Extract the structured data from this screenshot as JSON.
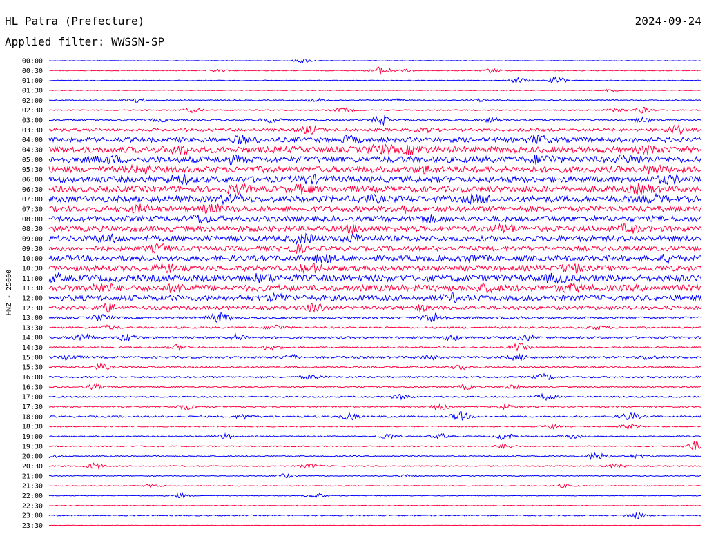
{
  "header": {
    "station": "HL Patra (Prefecture)",
    "date": "2024-09-24",
    "filter_text": "Applied filter: WWSSN-SP",
    "channel_label": "HNZ - 25000"
  },
  "colors": {
    "blue": "#0000ff",
    "red": "#ff0040"
  },
  "chart_data": {
    "type": "line",
    "title": "HL Patra (Prefecture)",
    "ylabel": "HNZ - 25000",
    "rows": [
      {
        "label": "00:00",
        "color": "blue",
        "noise": 0.4,
        "events": [
          [
            0.39,
            3
          ]
        ]
      },
      {
        "label": "00:30",
        "color": "red",
        "noise": 0.6,
        "events": [
          [
            0.26,
            1.5
          ],
          [
            0.51,
            6
          ],
          [
            0.55,
            1.5
          ],
          [
            0.68,
            3
          ]
        ]
      },
      {
        "label": "01:00",
        "color": "blue",
        "noise": 0.5,
        "events": [
          [
            0.72,
            4
          ],
          [
            0.78,
            5
          ]
        ]
      },
      {
        "label": "01:30",
        "color": "red",
        "noise": 0.5,
        "events": [
          [
            0.86,
            1.5
          ]
        ]
      },
      {
        "label": "02:00",
        "color": "blue",
        "noise": 0.8,
        "events": [
          [
            0.13,
            4
          ],
          [
            0.41,
            2
          ],
          [
            0.53,
            2
          ],
          [
            0.66,
            1.5
          ]
        ]
      },
      {
        "label": "02:30",
        "color": "red",
        "noise": 0.8,
        "events": [
          [
            0.22,
            3
          ],
          [
            0.45,
            3
          ],
          [
            0.87,
            2
          ],
          [
            0.91,
            4
          ]
        ]
      },
      {
        "label": "03:00",
        "color": "blue",
        "noise": 1.2,
        "events": [
          [
            0.17,
            2
          ],
          [
            0.34,
            4
          ],
          [
            0.51,
            6
          ],
          [
            0.68,
            3
          ],
          [
            0.91,
            3
          ]
        ]
      },
      {
        "label": "03:30",
        "color": "red",
        "noise": 2,
        "events": [
          [
            0.4,
            5
          ],
          [
            0.58,
            2
          ],
          [
            0.96,
            6
          ]
        ]
      },
      {
        "label": "04:00",
        "color": "blue",
        "noise": 3.5,
        "events": [
          [
            0.3,
            9
          ],
          [
            0.46,
            4
          ],
          [
            0.75,
            6
          ]
        ]
      },
      {
        "label": "04:30",
        "color": "red",
        "noise": 4.5,
        "events": [
          [
            0.2,
            5
          ],
          [
            0.51,
            9
          ],
          [
            0.56,
            6
          ],
          [
            0.92,
            5
          ]
        ]
      },
      {
        "label": "05:00",
        "color": "blue",
        "noise": 4.5,
        "events": [
          [
            0.09,
            6
          ],
          [
            0.28,
            5
          ],
          [
            0.76,
            10
          ],
          [
            0.89,
            9
          ]
        ]
      },
      {
        "label": "05:30",
        "color": "red",
        "noise": 4.5,
        "events": [
          [
            0.14,
            5
          ],
          [
            0.58,
            4
          ],
          [
            0.93,
            6
          ]
        ]
      },
      {
        "label": "06:00",
        "color": "blue",
        "noise": 4.5,
        "events": [
          [
            0.2,
            6
          ],
          [
            0.4,
            5
          ],
          [
            0.95,
            6
          ]
        ]
      },
      {
        "label": "06:30",
        "color": "red",
        "noise": 4.5,
        "events": [
          [
            0.29,
            7
          ],
          [
            0.39,
            6
          ],
          [
            0.91,
            6
          ]
        ]
      },
      {
        "label": "07:00",
        "color": "blue",
        "noise": 4.5,
        "events": [
          [
            0.28,
            9
          ],
          [
            0.49,
            7
          ],
          [
            0.66,
            10
          ],
          [
            0.93,
            5
          ]
        ]
      },
      {
        "label": "07:30",
        "color": "red",
        "noise": 4,
        "events": [
          [
            0.14,
            5
          ],
          [
            0.25,
            6
          ],
          [
            0.54,
            5
          ]
        ]
      },
      {
        "label": "08:00",
        "color": "blue",
        "noise": 4,
        "events": [
          [
            0.23,
            5
          ],
          [
            0.58,
            4
          ]
        ]
      },
      {
        "label": "08:30",
        "color": "red",
        "noise": 4,
        "events": [
          [
            0.47,
            5
          ],
          [
            0.7,
            8
          ],
          [
            0.89,
            5
          ]
        ]
      },
      {
        "label": "09:00",
        "color": "blue",
        "noise": 4,
        "events": [
          [
            0.09,
            8
          ],
          [
            0.39,
            8
          ],
          [
            0.47,
            5
          ]
        ]
      },
      {
        "label": "09:30",
        "color": "red",
        "noise": 3.5,
        "events": [
          [
            0.17,
            5
          ],
          [
            0.38,
            4
          ]
        ]
      },
      {
        "label": "10:00",
        "color": "blue",
        "noise": 4,
        "events": [
          [
            0.42,
            7
          ],
          [
            0.65,
            4
          ],
          [
            0.95,
            4
          ]
        ]
      },
      {
        "label": "10:30",
        "color": "red",
        "noise": 4,
        "events": [
          [
            0.18,
            5
          ],
          [
            0.4,
            6
          ],
          [
            0.8,
            6
          ]
        ]
      },
      {
        "label": "11:00",
        "color": "blue",
        "noise": 5,
        "events": [
          [
            0.0,
            7
          ],
          [
            0.33,
            6
          ],
          [
            0.78,
            7
          ]
        ]
      },
      {
        "label": "11:30",
        "color": "red",
        "noise": 4.5,
        "events": [
          [
            0.08,
            8
          ],
          [
            0.2,
            6
          ],
          [
            0.67,
            5
          ],
          [
            0.8,
            6
          ]
        ]
      },
      {
        "label": "12:00",
        "color": "blue",
        "noise": 4,
        "events": [
          [
            0.35,
            4
          ],
          [
            0.62,
            4
          ]
        ]
      },
      {
        "label": "12:30",
        "color": "red",
        "noise": 2.5,
        "events": [
          [
            0.09,
            6
          ],
          [
            0.41,
            7
          ],
          [
            0.57,
            3
          ]
        ]
      },
      {
        "label": "13:00",
        "color": "blue",
        "noise": 1.5,
        "events": [
          [
            0.08,
            4
          ],
          [
            0.26,
            9
          ],
          [
            0.59,
            14
          ],
          [
            0.72,
            3
          ]
        ]
      },
      {
        "label": "13:30",
        "color": "red",
        "noise": 1.2,
        "events": [
          [
            0.09,
            3
          ],
          [
            0.35,
            4
          ],
          [
            0.84,
            3
          ]
        ]
      },
      {
        "label": "14:00",
        "color": "blue",
        "noise": 1.5,
        "events": [
          [
            0.05,
            5
          ],
          [
            0.12,
            5
          ],
          [
            0.29,
            4
          ],
          [
            0.62,
            4
          ],
          [
            0.73,
            4
          ]
        ]
      },
      {
        "label": "14:30",
        "color": "red",
        "noise": 1,
        "events": [
          [
            0.2,
            4
          ],
          [
            0.34,
            4
          ],
          [
            0.72,
            5
          ]
        ]
      },
      {
        "label": "15:00",
        "color": "blue",
        "noise": 1.5,
        "events": [
          [
            0.03,
            4
          ],
          [
            0.37,
            3
          ],
          [
            0.58,
            3
          ],
          [
            0.72,
            4
          ],
          [
            0.92,
            3
          ]
        ]
      },
      {
        "label": "15:30",
        "color": "red",
        "noise": 1.2,
        "events": [
          [
            0.08,
            4
          ],
          [
            0.63,
            3
          ]
        ]
      },
      {
        "label": "16:00",
        "color": "blue",
        "noise": 1.2,
        "events": [
          [
            0.4,
            3
          ],
          [
            0.76,
            4
          ]
        ]
      },
      {
        "label": "16:30",
        "color": "red",
        "noise": 1,
        "events": [
          [
            0.07,
            3
          ],
          [
            0.64,
            3
          ],
          [
            0.71,
            3
          ]
        ]
      },
      {
        "label": "17:00",
        "color": "blue",
        "noise": 1,
        "events": [
          [
            0.54,
            3
          ],
          [
            0.76,
            4
          ]
        ]
      },
      {
        "label": "17:30",
        "color": "red",
        "noise": 1,
        "events": [
          [
            0.21,
            4
          ],
          [
            0.6,
            5
          ],
          [
            0.7,
            3
          ]
        ]
      },
      {
        "label": "18:00",
        "color": "blue",
        "noise": 1.2,
        "events": [
          [
            0.3,
            3
          ],
          [
            0.46,
            4
          ],
          [
            0.63,
            6
          ],
          [
            0.89,
            5
          ]
        ]
      },
      {
        "label": "18:30",
        "color": "red",
        "noise": 0.8,
        "events": [
          [
            0.77,
            3
          ],
          [
            0.89,
            4
          ]
        ]
      },
      {
        "label": "19:00",
        "color": "blue",
        "noise": 0.8,
        "events": [
          [
            0.27,
            3
          ],
          [
            0.52,
            4
          ],
          [
            0.6,
            3
          ],
          [
            0.7,
            5
          ],
          [
            0.8,
            3
          ]
        ]
      },
      {
        "label": "19:30",
        "color": "red",
        "noise": 0.8,
        "events": [
          [
            0.7,
            3
          ],
          [
            0.99,
            6
          ]
        ]
      },
      {
        "label": "20:00",
        "color": "blue",
        "noise": 0.8,
        "events": [
          [
            0.0,
            3
          ],
          [
            0.84,
            6
          ],
          [
            0.9,
            3
          ]
        ]
      },
      {
        "label": "20:30",
        "color": "red",
        "noise": 0.8,
        "events": [
          [
            0.07,
            4
          ],
          [
            0.4,
            3
          ],
          [
            0.87,
            3
          ]
        ]
      },
      {
        "label": "21:00",
        "color": "blue",
        "noise": 0.6,
        "events": [
          [
            0.36,
            3
          ],
          [
            0.55,
            2
          ]
        ]
      },
      {
        "label": "21:30",
        "color": "red",
        "noise": 0.6,
        "events": [
          [
            0.16,
            2
          ],
          [
            0.79,
            2
          ]
        ]
      },
      {
        "label": "22:00",
        "color": "blue",
        "noise": 0.5,
        "events": [
          [
            0.2,
            3
          ],
          [
            0.41,
            3
          ]
        ]
      },
      {
        "label": "22:30",
        "color": "red",
        "noise": 0.5,
        "events": []
      },
      {
        "label": "23:00",
        "color": "blue",
        "noise": 0.8,
        "events": [
          [
            0.9,
            5
          ]
        ]
      },
      {
        "label": "23:30",
        "color": "red",
        "noise": 0.3,
        "events": []
      }
    ]
  }
}
